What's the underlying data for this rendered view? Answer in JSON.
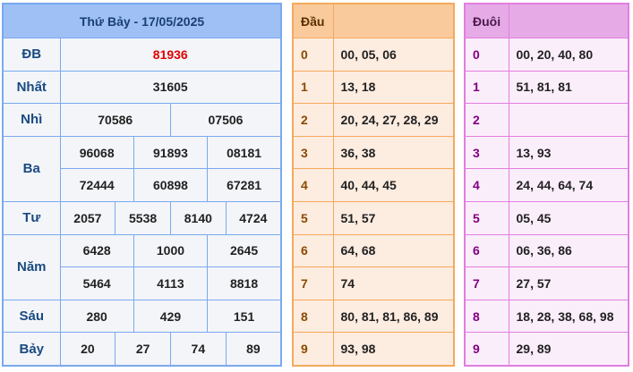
{
  "title": "Thứ Bảy - 17/05/2025",
  "prizes": {
    "db": {
      "label": "ĐB",
      "values": [
        "81936"
      ]
    },
    "nhat": {
      "label": "Nhất",
      "values": [
        "31605"
      ]
    },
    "nhi": {
      "label": "Nhì",
      "values": [
        "70586",
        "07506"
      ]
    },
    "ba": {
      "label": "Ba",
      "values": [
        "96068",
        "91893",
        "08181",
        "72444",
        "60898",
        "67281"
      ]
    },
    "tu": {
      "label": "Tư",
      "values": [
        "2057",
        "5538",
        "8140",
        "4724"
      ]
    },
    "nam": {
      "label": "Năm",
      "values": [
        "6428",
        "1000",
        "2645",
        "5464",
        "4113",
        "8818"
      ]
    },
    "sau": {
      "label": "Sáu",
      "values": [
        "280",
        "429",
        "151"
      ]
    },
    "bay": {
      "label": "Bảy",
      "values": [
        "20",
        "27",
        "74",
        "89"
      ]
    }
  },
  "dau": {
    "header": "Đầu",
    "rows": [
      [
        "0",
        "00, 05, 06"
      ],
      [
        "1",
        "13, 18"
      ],
      [
        "2",
        "20, 24, 27, 28, 29"
      ],
      [
        "3",
        "36, 38"
      ],
      [
        "4",
        "40, 44, 45"
      ],
      [
        "5",
        "51, 57"
      ],
      [
        "6",
        "64, 68"
      ],
      [
        "7",
        "74"
      ],
      [
        "8",
        "80, 81, 81, 86, 89"
      ],
      [
        "9",
        "93, 98"
      ]
    ]
  },
  "duoi": {
    "header": "Đuôi",
    "rows": [
      [
        "0",
        "00, 20, 40, 80"
      ],
      [
        "1",
        "51, 81, 81"
      ],
      [
        "2",
        ""
      ],
      [
        "3",
        "13, 93"
      ],
      [
        "4",
        "24, 44, 64, 74"
      ],
      [
        "5",
        "05, 45"
      ],
      [
        "6",
        "06, 36, 86"
      ],
      [
        "7",
        "27, 57"
      ],
      [
        "8",
        "18, 28, 38, 68, 98"
      ],
      [
        "9",
        "29, 89"
      ]
    ]
  },
  "colors": {
    "special_prize": "#e00000",
    "blue_header": "#9ec0f5",
    "orange_header": "#f9cb9c",
    "purple_header": "#e6abe7"
  }
}
